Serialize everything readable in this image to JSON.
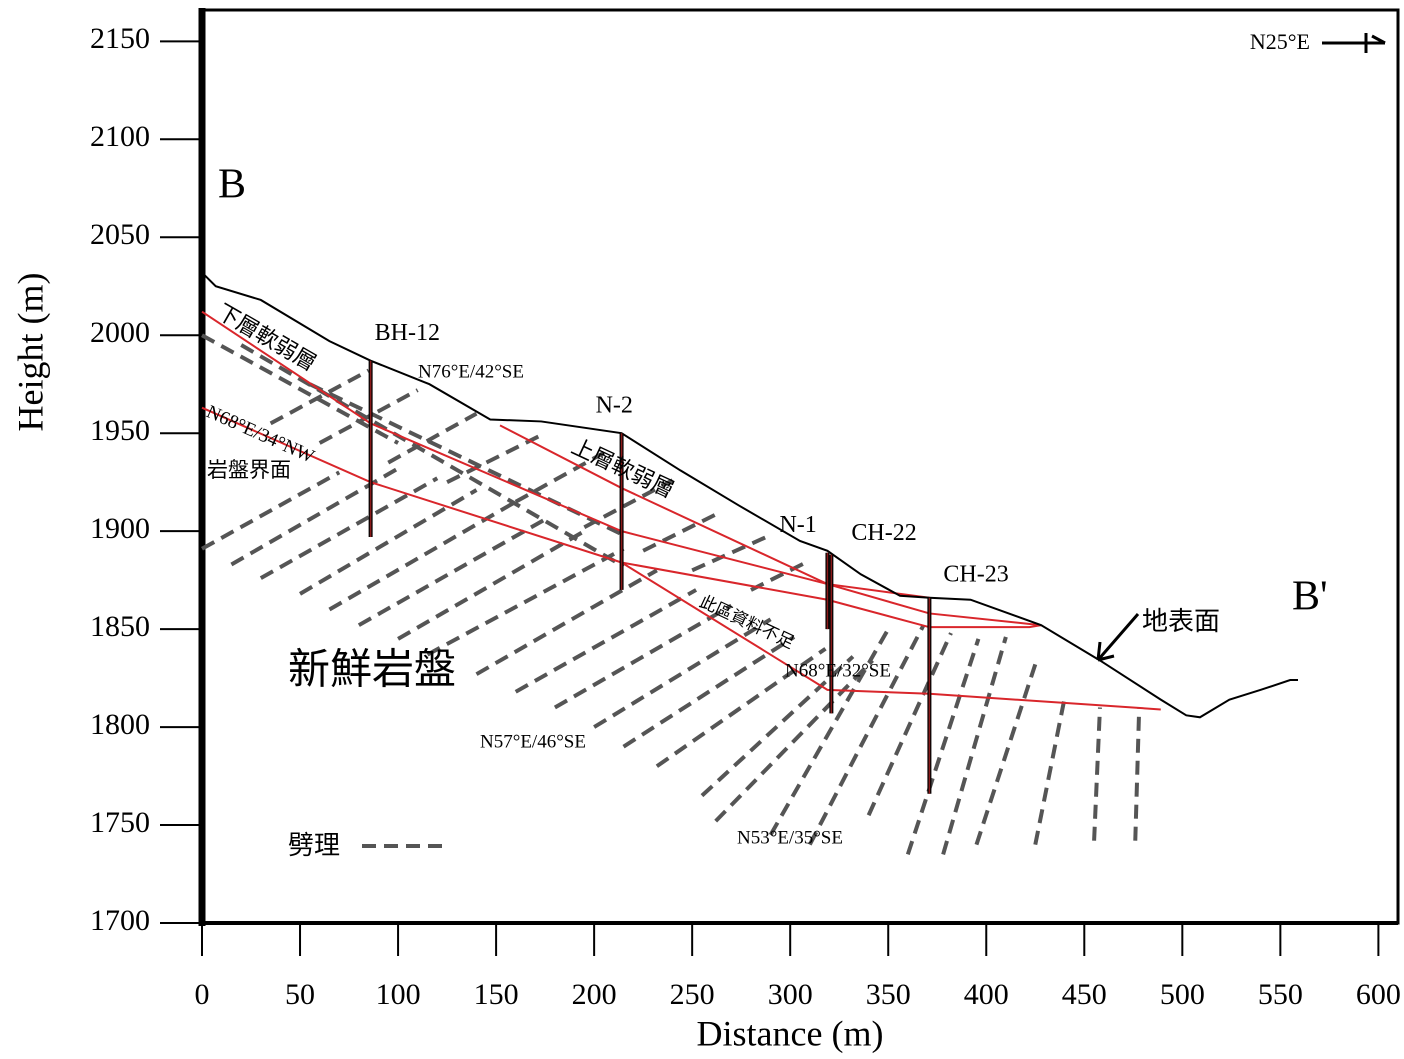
{
  "chart_data": {
    "type": "line",
    "x_label": "Distance (m)",
    "y_label": "Height (m)",
    "xlim": [
      0,
      610
    ],
    "ylim": [
      1700,
      2166
    ],
    "xticks": [
      0,
      50,
      100,
      150,
      200,
      250,
      300,
      350,
      400,
      450,
      500,
      550,
      600
    ],
    "yticks": [
      1700,
      1750,
      1800,
      1850,
      1900,
      1950,
      2000,
      2050,
      2100,
      2150
    ],
    "series": [
      {
        "name": "地表面",
        "color": "#000000",
        "x": [
          0,
          7,
          30,
          65,
          86,
          116,
          147,
          173,
          214,
          244,
          274,
          305,
          319,
          336,
          356,
          371,
          392,
          428,
          458,
          489,
          502,
          509,
          524,
          540,
          555,
          559
        ],
        "values": [
          2032,
          2025,
          2018,
          1997,
          1987,
          1975,
          1957,
          1956,
          1950,
          1931,
          1913,
          1895,
          1890,
          1878,
          1867,
          1866,
          1865,
          1852,
          1834,
          1814,
          1806,
          1805,
          1814,
          1819,
          1824,
          1824
        ]
      }
    ],
    "boundaries": {
      "color": "#d9262b",
      "lines": [
        {
          "x": [
            0,
            86,
            214,
            319,
            356,
            371
          ],
          "values": [
            2012,
            1955,
            1900,
            1873,
            1868,
            1866
          ]
        },
        {
          "x": [
            0,
            86,
            214,
            319,
            371,
            422,
            428
          ],
          "values": [
            1963,
            1925,
            1884,
            1865,
            1851,
            1851,
            1852
          ]
        },
        {
          "x": [
            152,
            214,
            319,
            371,
            428
          ],
          "values": [
            1954,
            1922,
            1873,
            1858,
            1852
          ]
        },
        {
          "x": [
            214,
            319,
            371,
            489
          ],
          "values": [
            1884,
            1819,
            1817,
            1809
          ]
        }
      ]
    },
    "boreholes": [
      {
        "name": "BH-12",
        "x": 86,
        "top": 1987,
        "bottom": 1897
      },
      {
        "name": "N-2",
        "x": 214,
        "top": 1950,
        "bottom": 1870
      },
      {
        "name": "N-1",
        "x": 319,
        "top": 1889,
        "bottom": 1850
      },
      {
        "name": "CH-22",
        "x": 321,
        "top": 1888,
        "bottom": 1807
      },
      {
        "name": "CH-23",
        "x": 371,
        "top": 1866,
        "bottom": 1766
      }
    ],
    "cleavage": {
      "name": "劈理",
      "color": "#555555",
      "segments": [
        [
          0,
          1891,
          70,
          1930
        ],
        [
          15,
          1883,
          100,
          1932
        ],
        [
          30,
          1876,
          120,
          1927
        ],
        [
          50,
          1868,
          140,
          1921
        ],
        [
          65,
          1860,
          160,
          1915
        ],
        [
          80,
          1852,
          175,
          1906
        ],
        [
          100,
          1845,
          195,
          1900
        ],
        [
          115,
          1837,
          215,
          1891
        ],
        [
          140,
          1827,
          232,
          1880
        ],
        [
          160,
          1818,
          252,
          1870
        ],
        [
          180,
          1810,
          270,
          1862
        ],
        [
          200,
          1800,
          290,
          1855
        ],
        [
          215,
          1790,
          302,
          1846
        ],
        [
          232,
          1780,
          318,
          1840
        ],
        [
          255,
          1765,
          332,
          1836
        ],
        [
          262,
          1752,
          342,
          1834
        ],
        [
          290,
          1745,
          350,
          1850
        ],
        [
          310,
          1740,
          368,
          1852
        ],
        [
          340,
          1755,
          382,
          1848
        ],
        [
          360,
          1735,
          396,
          1845
        ],
        [
          378,
          1735,
          410,
          1846
        ],
        [
          395,
          1740,
          425,
          1832
        ],
        [
          425,
          1740,
          440,
          1815
        ],
        [
          455,
          1742,
          458,
          1810
        ],
        [
          476,
          1742,
          478,
          1810
        ],
        [
          0,
          2000,
          100,
          1945
        ],
        [
          20,
          1995,
          215,
          1882
        ],
        [
          55,
          1975,
          215,
          1898
        ],
        [
          35,
          1955,
          85,
          1982
        ],
        [
          60,
          1945,
          110,
          1972
        ],
        [
          95,
          1935,
          140,
          1960
        ],
        [
          125,
          1925,
          175,
          1950
        ],
        [
          160,
          1915,
          205,
          1940
        ],
        [
          195,
          1902,
          240,
          1926
        ],
        [
          225,
          1890,
          265,
          1910
        ],
        [
          250,
          1880,
          290,
          1898
        ],
        [
          280,
          1870,
          310,
          1885
        ]
      ]
    },
    "annotations": [
      "B",
      "B'",
      "N25°E",
      "N76°E/42°SE",
      "N68°E/34°NW",
      "岩盤界面",
      "下層軟弱層",
      "上層軟弱層",
      "此區資料不足",
      "N68°E/32°SE",
      "N57°E/46°SE",
      "N53°E/35°SE",
      "新鮮岩盤"
    ]
  }
}
